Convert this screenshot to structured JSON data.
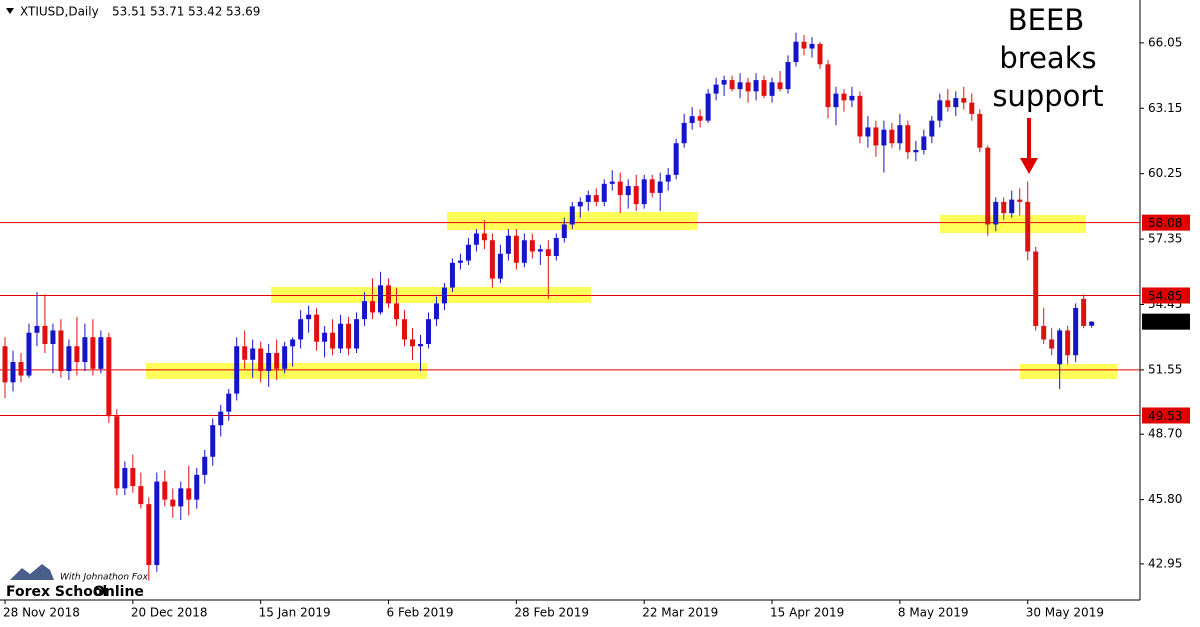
{
  "chart_data": {
    "type": "candlestick",
    "title": "XTIUSD,Daily",
    "categories": [
      "28 Nov 2018",
      null,
      null,
      null,
      null,
      null,
      null,
      null,
      null,
      null,
      null,
      null,
      null,
      null,
      null,
      null,
      "20 Dec 2018",
      null,
      null,
      null,
      null,
      null,
      null,
      null,
      null,
      null,
      null,
      null,
      null,
      null,
      null,
      null,
      "15 Jan 2019",
      null,
      null,
      null,
      null,
      null,
      null,
      null,
      null,
      null,
      null,
      null,
      null,
      null,
      null,
      null,
      "6 Feb 2019",
      null,
      null,
      null,
      null,
      null,
      null,
      null,
      null,
      null,
      null,
      null,
      null,
      null,
      null,
      null,
      "28 Feb 2019",
      null,
      null,
      null,
      null,
      null,
      null,
      null,
      null,
      null,
      null,
      null,
      null,
      null,
      null,
      null,
      "22 Mar 2019",
      null,
      null,
      null,
      null,
      null,
      null,
      null,
      null,
      null,
      null,
      null,
      null,
      null,
      null,
      null,
      "15 Apr 2019",
      null,
      null,
      null,
      null,
      null,
      null,
      null,
      null,
      null,
      null,
      null,
      null,
      null,
      null,
      null,
      "8 May 2019",
      null,
      null,
      null,
      null,
      null,
      null,
      null,
      null,
      null,
      null,
      null,
      null,
      null,
      null,
      null,
      "30 May 2019",
      null,
      null,
      null,
      null,
      null,
      null,
      null,
      null
    ],
    "values": [
      [
        52.6,
        53.0,
        50.3,
        51.0
      ],
      [
        51.0,
        52.4,
        50.6,
        51.9
      ],
      [
        51.9,
        52.3,
        51.0,
        51.3
      ],
      [
        51.3,
        53.6,
        51.2,
        53.2
      ],
      [
        53.2,
        55.0,
        52.6,
        53.5
      ],
      [
        53.5,
        54.9,
        52.3,
        52.7
      ],
      [
        52.7,
        53.6,
        51.4,
        53.3
      ],
      [
        53.3,
        53.8,
        51.2,
        51.5
      ],
      [
        51.5,
        52.9,
        51.1,
        52.6
      ],
      [
        52.6,
        53.9,
        51.3,
        51.9
      ],
      [
        51.9,
        53.6,
        51.5,
        53.0
      ],
      [
        53.0,
        53.8,
        51.3,
        51.6
      ],
      [
        51.6,
        53.3,
        51.4,
        53.0
      ],
      [
        53.0,
        53.2,
        49.2,
        49.5
      ],
      [
        49.5,
        49.8,
        46.0,
        46.3
      ],
      [
        46.3,
        47.5,
        46.0,
        47.2
      ],
      [
        47.2,
        47.8,
        46.1,
        46.4
      ],
      [
        46.4,
        47.0,
        45.4,
        45.6
      ],
      [
        45.6,
        45.9,
        42.2,
        42.9
      ],
      [
        42.9,
        47.0,
        42.6,
        46.6
      ],
      [
        46.6,
        47.1,
        45.5,
        45.8
      ],
      [
        45.8,
        46.3,
        45.0,
        45.5
      ],
      [
        45.5,
        46.6,
        44.9,
        46.3
      ],
      [
        46.3,
        47.3,
        45.1,
        45.8
      ],
      [
        45.8,
        47.2,
        45.4,
        46.9
      ],
      [
        46.9,
        48.0,
        46.5,
        47.7
      ],
      [
        47.7,
        49.4,
        47.3,
        49.1
      ],
      [
        49.1,
        50.0,
        48.6,
        49.7
      ],
      [
        49.7,
        50.7,
        49.3,
        50.5
      ],
      [
        50.5,
        53.0,
        50.2,
        52.6
      ],
      [
        52.6,
        53.3,
        51.6,
        52.0
      ],
      [
        52.0,
        52.9,
        51.2,
        52.5
      ],
      [
        52.5,
        52.8,
        51.0,
        51.5
      ],
      [
        51.5,
        52.7,
        50.8,
        52.3
      ],
      [
        52.3,
        52.9,
        51.1,
        51.6
      ],
      [
        51.6,
        52.8,
        51.4,
        52.6
      ],
      [
        52.6,
        53.0,
        51.7,
        52.9
      ],
      [
        52.9,
        54.2,
        52.5,
        53.8
      ],
      [
        53.8,
        54.4,
        53.2,
        54.0
      ],
      [
        54.0,
        54.3,
        52.4,
        52.8
      ],
      [
        52.8,
        53.5,
        52.1,
        53.2
      ],
      [
        53.2,
        53.8,
        52.2,
        52.5
      ],
      [
        52.5,
        54.0,
        52.3,
        53.6
      ],
      [
        53.6,
        53.9,
        52.2,
        52.5
      ],
      [
        52.5,
        54.1,
        52.3,
        53.8
      ],
      [
        53.8,
        55.0,
        53.5,
        54.6
      ],
      [
        54.6,
        55.6,
        53.8,
        54.1
      ],
      [
        54.1,
        55.9,
        54.0,
        55.3
      ],
      [
        55.3,
        55.6,
        54.3,
        54.5
      ],
      [
        54.5,
        55.2,
        53.5,
        53.8
      ],
      [
        53.8,
        54.2,
        52.6,
        52.9
      ],
      [
        52.9,
        53.4,
        52.0,
        52.6
      ],
      [
        52.6,
        53.1,
        51.5,
        52.7
      ],
      [
        52.7,
        54.1,
        52.5,
        53.8
      ],
      [
        53.8,
        54.8,
        53.5,
        54.5
      ],
      [
        54.5,
        55.4,
        54.2,
        55.2
      ],
      [
        55.2,
        56.5,
        55.0,
        56.3
      ],
      [
        56.3,
        56.7,
        56.0,
        56.4
      ],
      [
        56.4,
        57.4,
        56.2,
        57.1
      ],
      [
        57.1,
        57.8,
        56.8,
        57.6
      ],
      [
        57.6,
        58.2,
        56.9,
        57.3
      ],
      [
        57.3,
        57.6,
        55.2,
        55.6
      ],
      [
        55.6,
        57.1,
        55.4,
        56.7
      ],
      [
        56.7,
        57.8,
        56.4,
        57.5
      ],
      [
        57.5,
        57.8,
        56.0,
        56.3
      ],
      [
        56.3,
        57.6,
        56.1,
        57.3
      ],
      [
        57.3,
        57.6,
        56.5,
        56.8
      ],
      [
        56.8,
        57.1,
        56.2,
        56.9
      ],
      [
        56.9,
        57.3,
        54.7,
        56.6
      ],
      [
        56.6,
        57.6,
        56.4,
        57.4
      ],
      [
        57.4,
        58.3,
        57.2,
        58.0
      ],
      [
        58.0,
        59.0,
        57.8,
        58.8
      ],
      [
        58.8,
        59.2,
        58.3,
        59.0
      ],
      [
        59.0,
        59.5,
        58.6,
        59.3
      ],
      [
        59.3,
        59.6,
        58.8,
        59.0
      ],
      [
        59.0,
        60.0,
        58.8,
        59.8
      ],
      [
        59.8,
        60.4,
        59.5,
        59.9
      ],
      [
        59.9,
        60.3,
        58.5,
        59.3
      ],
      [
        59.3,
        60.0,
        58.7,
        59.7
      ],
      [
        59.7,
        60.2,
        58.6,
        58.9
      ],
      [
        58.9,
        60.2,
        58.7,
        60.0
      ],
      [
        60.0,
        60.2,
        59.2,
        59.4
      ],
      [
        59.4,
        60.3,
        58.6,
        59.9
      ],
      [
        59.9,
        60.5,
        59.5,
        60.2
      ],
      [
        60.2,
        61.8,
        60.0,
        61.6
      ],
      [
        61.6,
        62.9,
        61.4,
        62.5
      ],
      [
        62.5,
        63.2,
        62.2,
        62.8
      ],
      [
        62.8,
        63.1,
        62.3,
        62.6
      ],
      [
        62.6,
        64.0,
        62.5,
        63.8
      ],
      [
        63.8,
        64.5,
        63.5,
        64.2
      ],
      [
        64.2,
        64.6,
        63.7,
        64.4
      ],
      [
        64.4,
        64.6,
        63.9,
        64.0
      ],
      [
        64.0,
        64.7,
        63.6,
        64.3
      ],
      [
        64.3,
        64.5,
        63.4,
        63.9
      ],
      [
        63.9,
        64.7,
        63.5,
        64.4
      ],
      [
        64.4,
        64.6,
        63.6,
        63.7
      ],
      [
        63.7,
        64.5,
        63.4,
        64.3
      ],
      [
        64.3,
        64.8,
        63.9,
        64.0
      ],
      [
        64.0,
        65.5,
        63.8,
        65.2
      ],
      [
        65.2,
        66.5,
        65.0,
        66.1
      ],
      [
        66.1,
        66.4,
        65.5,
        65.8
      ],
      [
        65.8,
        66.3,
        65.4,
        66.0
      ],
      [
        66.0,
        66.1,
        64.9,
        65.1
      ],
      [
        65.1,
        65.3,
        62.7,
        63.2
      ],
      [
        63.2,
        64.1,
        62.4,
        63.8
      ],
      [
        63.8,
        64.0,
        63.0,
        63.5
      ],
      [
        63.5,
        64.1,
        63.2,
        63.7
      ],
      [
        63.7,
        63.9,
        61.6,
        61.9
      ],
      [
        61.9,
        62.8,
        61.4,
        62.3
      ],
      [
        62.3,
        62.6,
        61.0,
        61.5
      ],
      [
        61.5,
        62.6,
        60.3,
        62.2
      ],
      [
        62.2,
        62.5,
        61.4,
        61.6
      ],
      [
        61.6,
        62.9,
        61.3,
        62.4
      ],
      [
        62.4,
        62.6,
        60.9,
        61.2
      ],
      [
        61.2,
        61.7,
        60.8,
        61.3
      ],
      [
        61.3,
        62.2,
        61.1,
        61.9
      ],
      [
        61.9,
        62.8,
        61.6,
        62.6
      ],
      [
        62.6,
        63.8,
        62.3,
        63.5
      ],
      [
        63.5,
        64.0,
        63.0,
        63.2
      ],
      [
        63.2,
        63.9,
        62.8,
        63.6
      ],
      [
        63.6,
        64.1,
        63.1,
        63.4
      ],
      [
        63.4,
        63.8,
        62.6,
        62.9
      ],
      [
        62.9,
        63.1,
        61.2,
        61.4
      ],
      [
        61.4,
        61.5,
        57.5,
        58.0
      ],
      [
        58.0,
        59.2,
        57.7,
        59.0
      ],
      [
        59.0,
        59.2,
        58.2,
        58.5
      ],
      [
        58.5,
        59.5,
        58.3,
        59.1
      ],
      [
        59.1,
        59.6,
        58.4,
        59.0
      ],
      [
        59.0,
        59.9,
        56.4,
        56.8
      ],
      [
        56.8,
        57.0,
        53.3,
        53.5
      ],
      [
        53.5,
        54.3,
        52.7,
        52.9
      ],
      [
        52.9,
        53.4,
        52.2,
        52.5
      ],
      [
        51.8,
        53.4,
        50.7,
        53.3
      ],
      [
        53.3,
        53.5,
        51.8,
        52.2
      ],
      [
        52.2,
        54.5,
        51.9,
        54.3
      ],
      [
        54.7,
        54.9,
        53.4,
        53.5
      ],
      [
        53.51,
        53.71,
        53.42,
        53.69
      ]
    ],
    "up_color": "#1414c8",
    "down_color": "#e01010",
    "ylim": [
      41.35,
      67.95
    ],
    "yticks": [
      66.05,
      63.15,
      60.25,
      57.35,
      54.45,
      51.55,
      {
        "value": 48.7,
        "label": "48.70"
      },
      {
        "value": 45.8,
        "label": "45.80"
      },
      42.95
    ],
    "levels": [
      58.08,
      54.85,
      49.53
    ],
    "levels_unlabeled": [
      51.55
    ],
    "level_color": "#e00000",
    "annotation": [
      "BEEB",
      "breaks",
      "support"
    ],
    "logo": {
      "name": "Forex School",
      "name_accent": "Online",
      "tagline": "With Johnathon Fox"
    }
  }
}
